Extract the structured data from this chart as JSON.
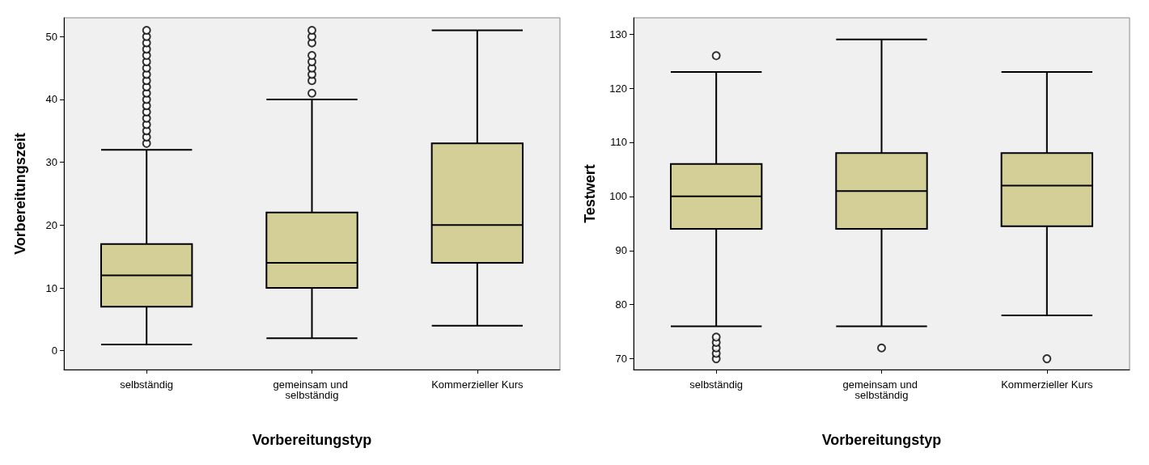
{
  "chart_data": [
    {
      "type": "box",
      "xlabel": "Vorbereitungstyp",
      "ylabel": "Vorbereitungszeit",
      "categories": [
        "selbständig",
        "gemeinsam und selbständig",
        "Kommerzieller Kurs"
      ],
      "color": "#d4cf96",
      "ylim": [
        -3,
        53
      ],
      "yticks": [
        0,
        10,
        20,
        30,
        40,
        50
      ],
      "grid": false,
      "marker": "circle",
      "boxes": [
        {
          "low": 1,
          "q1": 7,
          "median": 12,
          "q3": 17,
          "high": 32,
          "outliers": [
            33,
            34,
            35,
            36,
            37,
            38,
            39,
            40,
            41,
            42,
            43,
            44,
            45,
            46,
            47,
            48,
            49,
            50,
            51
          ]
        },
        {
          "low": 2,
          "q1": 10,
          "median": 14,
          "q3": 22,
          "high": 40,
          "outliers": [
            41,
            43,
            44,
            45,
            46,
            47,
            49,
            50,
            51
          ]
        },
        {
          "low": 4,
          "q1": 14,
          "median": 20,
          "q3": 33,
          "high": 51
        }
      ]
    },
    {
      "type": "box",
      "xlabel": "Vorbereitungstyp",
      "ylabel": "Testwert",
      "categories": [
        "selbständig",
        "gemeinsam und selbständig",
        "Kommerzieller Kurs"
      ],
      "color": "#d4cf96",
      "ylim": [
        68,
        133
      ],
      "yticks": [
        70,
        80,
        90,
        100,
        110,
        120,
        130
      ],
      "grid": false,
      "marker": "circle",
      "boxes": [
        {
          "low": 76,
          "q1": 94,
          "median": 100,
          "q3": 106,
          "high": 123,
          "outliers": [
            126,
            70,
            71,
            72,
            73,
            74
          ]
        },
        {
          "low": 76,
          "q1": 94,
          "median": 101,
          "q3": 108,
          "high": 129,
          "outliers": [
            72
          ]
        },
        {
          "low": 78,
          "q1": 94.5,
          "median": 102,
          "q3": 108,
          "high": 123,
          "outliers": [
            70
          ]
        }
      ]
    }
  ]
}
